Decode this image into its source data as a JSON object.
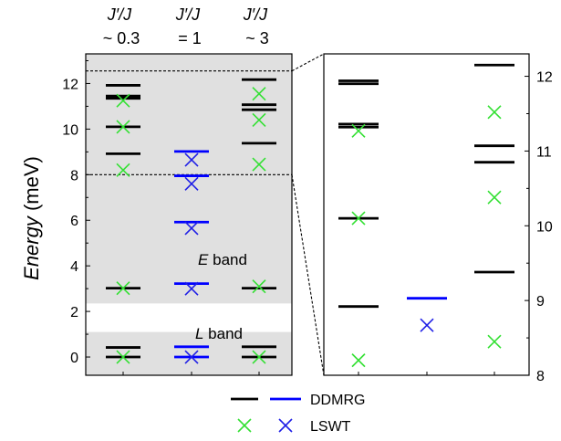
{
  "colors": {
    "ddmrg_black": "#000000",
    "ddmrg_blue": "#0000ff",
    "lswt_green": "#33e033",
    "lswt_blue": "#1f1fe6",
    "band_shade": "#e0e0e0"
  },
  "chart_data": [
    {
      "panel": "main",
      "type": "scatter",
      "ylabel_italic": "Energy",
      "ylabel_unit": " (meV)",
      "ylim": [
        -0.8,
        13.3
      ],
      "yticks": [
        0,
        2,
        4,
        6,
        8,
        10,
        12
      ],
      "columns": [
        {
          "head_line1": "J′/J",
          "head_line2": "~ 0.3"
        },
        {
          "head_line1": "J′/J",
          "head_line2": "= 1"
        },
        {
          "head_line1": "J′/J",
          "head_line2": "~ 3"
        }
      ],
      "bands": [
        {
          "name_italic": "L",
          "name_rest": " band",
          "range": [
            -0.8,
            1.1
          ]
        },
        {
          "name_italic": "E",
          "name_rest": " band",
          "range": [
            2.35,
            13.3
          ]
        }
      ],
      "reference_lines": [
        12.55,
        8.0
      ],
      "ddmrg": [
        {
          "column": 0,
          "color": "black",
          "energies": [
            0.0,
            0.42,
            3.02,
            8.92,
            10.1,
            11.35,
            11.45,
            11.92
          ]
        },
        {
          "column": 1,
          "color": "blue",
          "energies": [
            0.0,
            0.45,
            3.22,
            5.92,
            7.95,
            9.02
          ]
        },
        {
          "column": 2,
          "color": "black",
          "energies": [
            0.0,
            0.45,
            3.02,
            9.38,
            10.85,
            11.07,
            12.17
          ]
        }
      ],
      "lswt": [
        {
          "column": 0,
          "color": "green",
          "energies": [
            0.0,
            3.02,
            8.2,
            10.1,
            11.25
          ]
        },
        {
          "column": 1,
          "color": "blue",
          "energies": [
            0.0,
            3.0,
            5.65,
            7.6,
            8.65
          ]
        },
        {
          "column": 2,
          "color": "green",
          "energies": [
            0.0,
            3.1,
            8.45,
            10.4,
            11.55
          ]
        }
      ]
    },
    {
      "panel": "zoom",
      "type": "scatter",
      "ylim": [
        8.0,
        12.3
      ],
      "yticks": [
        8,
        9,
        10,
        11,
        12
      ],
      "ddmrg": [
        {
          "column": 0,
          "color": "black",
          "energies": [
            8.92,
            10.1,
            11.32,
            11.36,
            11.9,
            11.94
          ]
        },
        {
          "column": 1,
          "color": "blue",
          "energies": [
            9.03
          ]
        },
        {
          "column": 2,
          "color": "black",
          "energies": [
            9.38,
            10.85,
            11.07,
            12.15
          ]
        }
      ],
      "lswt": [
        {
          "column": 0,
          "color": "green",
          "energies": [
            8.2,
            10.1,
            11.27
          ]
        },
        {
          "column": 1,
          "color": "blue",
          "energies": [
            8.67
          ]
        },
        {
          "column": 2,
          "color": "green",
          "energies": [
            8.45,
            10.38,
            11.52
          ]
        }
      ]
    }
  ],
  "legend": {
    "ddmrg_label": "DDMRG",
    "lswt_label": "LSWT"
  }
}
